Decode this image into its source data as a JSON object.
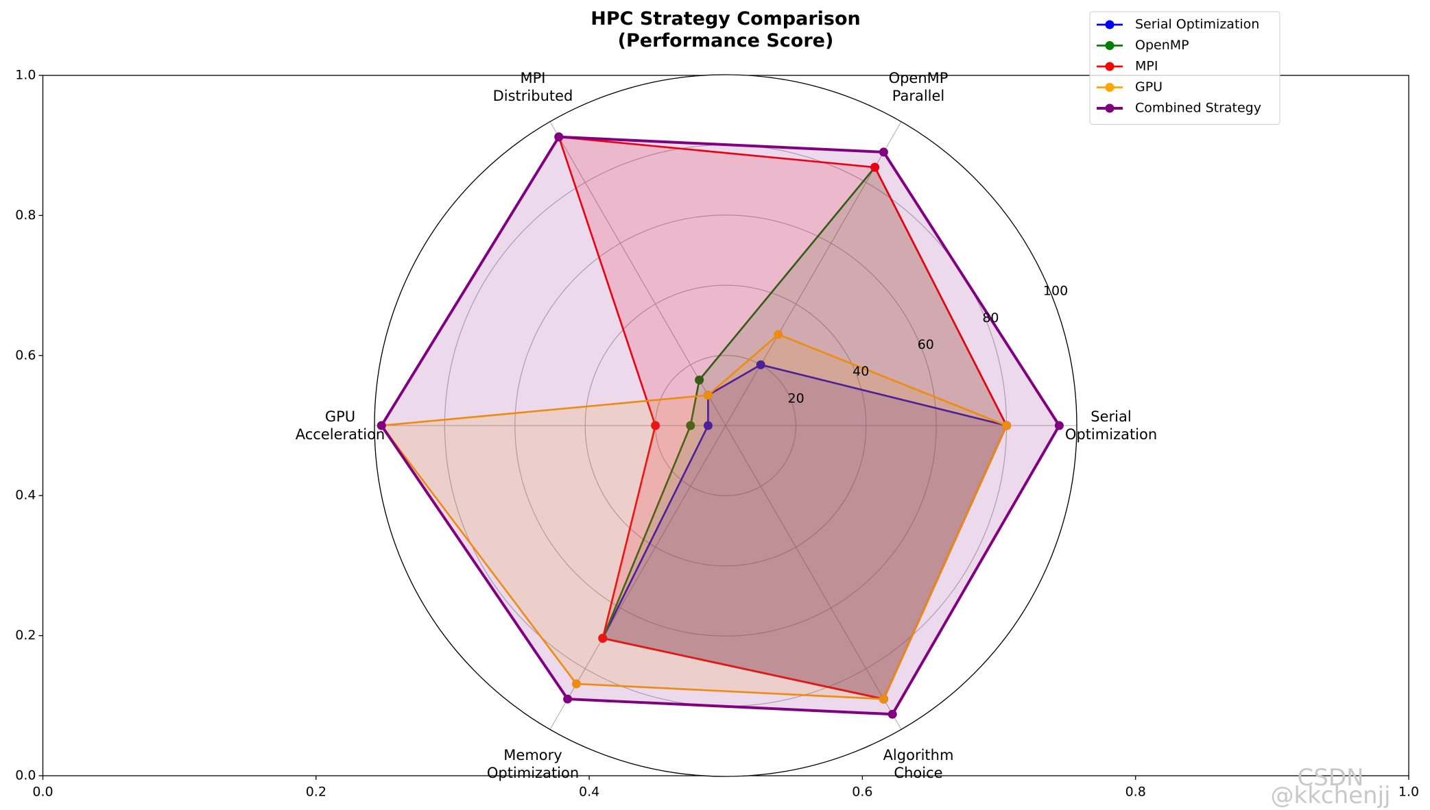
{
  "chart_data": {
    "type": "radar",
    "title": "HPC Strategy Comparison\n(Performance Score)",
    "categories": [
      "Serial\nOptimization",
      "OpenMP\nParallel",
      "MPI\nDistributed",
      "GPU\nAcceleration",
      "Memory\nOptimization",
      "Algorithm\nChoice"
    ],
    "series": [
      {
        "name": "Serial Optimization",
        "color": "#0000ff",
        "linewidth": 2,
        "values": [
          80,
          20,
          10,
          5,
          70,
          90
        ]
      },
      {
        "name": "OpenMP",
        "color": "#007f00",
        "linewidth": 2,
        "values": [
          80,
          85,
          15,
          10,
          70,
          90
        ]
      },
      {
        "name": "MPI",
        "color": "#ff0000",
        "linewidth": 2,
        "values": [
          80,
          85,
          95,
          20,
          70,
          90
        ]
      },
      {
        "name": "GPU",
        "color": "#ffa500",
        "linewidth": 2,
        "values": [
          80,
          30,
          10,
          98,
          85,
          90
        ]
      },
      {
        "name": "Combined Strategy",
        "color": "#800080",
        "linewidth": 3,
        "values": [
          95,
          90,
          95,
          98,
          90,
          95
        ]
      }
    ],
    "rlim": [
      0,
      100
    ],
    "rticks": [
      20,
      40,
      60,
      80,
      100
    ],
    "xlim": [
      0,
      1
    ],
    "ylim": [
      0,
      1
    ],
    "xticks": [
      {
        "value": 0,
        "label": "0.0"
      },
      {
        "value": 0.2,
        "label": "0.2"
      },
      {
        "value": 0.4,
        "label": "0.4"
      },
      {
        "value": 0.6,
        "label": "0.6"
      },
      {
        "value": 0.8,
        "label": "0.8"
      },
      {
        "value": 1,
        "label": "1.0"
      }
    ],
    "yticks": [
      {
        "value": 0,
        "label": "0.0"
      },
      {
        "value": 0.2,
        "label": "0.2"
      },
      {
        "value": 0.4,
        "label": "0.4"
      },
      {
        "value": 0.6,
        "label": "0.6"
      },
      {
        "value": 0.8,
        "label": "0.8"
      },
      {
        "value": 1,
        "label": "1.0"
      }
    ],
    "grid": true,
    "legend": "upper right"
  },
  "watermark": "CSDN @kkchenjj"
}
